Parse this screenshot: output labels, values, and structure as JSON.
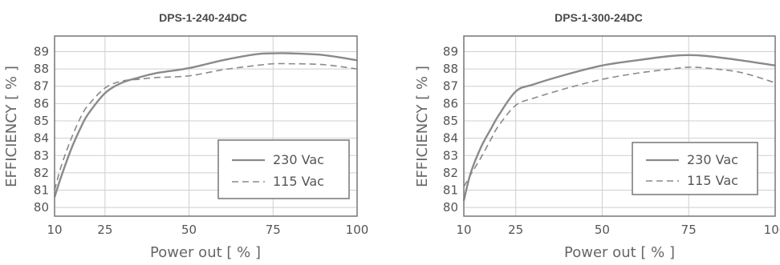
{
  "chart_data": [
    {
      "type": "line",
      "title": "DPS-1-240-24DC",
      "xlabel": "Power out [ % ]",
      "ylabel": "EFFICIENCY [ % ]",
      "xlim": [
        10,
        100
      ],
      "ylim": [
        79.5,
        89.9
      ],
      "xticks": [
        10,
        25,
        50,
        75,
        100
      ],
      "yticks": [
        80,
        81,
        82,
        83,
        84,
        85,
        86,
        87,
        88,
        89
      ],
      "grid": true,
      "legend_position": "bottom-right",
      "series": [
        {
          "name": "230 Vac",
          "style": "solid",
          "x": [
            10,
            12,
            15,
            18,
            20,
            25,
            30,
            35,
            40,
            50,
            60,
            70,
            75,
            80,
            90,
            100
          ],
          "y": [
            80.6,
            81.8,
            83.4,
            84.7,
            85.4,
            86.6,
            87.2,
            87.5,
            87.75,
            88.05,
            88.5,
            88.85,
            88.9,
            88.9,
            88.8,
            88.5
          ]
        },
        {
          "name": "115 Vac",
          "style": "dashed",
          "x": [
            10,
            12,
            15,
            18,
            20,
            25,
            30,
            35,
            40,
            50,
            60,
            70,
            75,
            80,
            90,
            100
          ],
          "y": [
            81.0,
            82.4,
            84.0,
            85.3,
            85.9,
            86.9,
            87.3,
            87.4,
            87.5,
            87.6,
            87.95,
            88.2,
            88.3,
            88.3,
            88.25,
            88.0
          ]
        }
      ]
    },
    {
      "type": "line",
      "title": "DPS-1-300-24DC",
      "xlabel": "Power out [ % ]",
      "ylabel": "EFFICIENCY [ % ]",
      "xlim": [
        10,
        100
      ],
      "ylim": [
        79.5,
        89.9
      ],
      "xticks": [
        10,
        25,
        50,
        75,
        100
      ],
      "yticks": [
        80,
        81,
        82,
        83,
        84,
        85,
        86,
        87,
        88,
        89
      ],
      "grid": true,
      "legend_position": "bottom-right",
      "series": [
        {
          "name": "230 Vac",
          "style": "solid",
          "x": [
            10,
            12,
            15,
            18,
            20,
            25,
            30,
            40,
            50,
            60,
            70,
            75,
            80,
            90,
            100
          ],
          "y": [
            80.4,
            82.0,
            83.5,
            84.6,
            85.3,
            86.7,
            87.1,
            87.7,
            88.2,
            88.5,
            88.75,
            88.8,
            88.75,
            88.5,
            88.2
          ]
        },
        {
          "name": "115 Vac",
          "style": "dashed",
          "x": [
            10,
            12,
            15,
            18,
            20,
            25,
            30,
            40,
            50,
            60,
            70,
            75,
            80,
            90,
            100
          ],
          "y": [
            81.2,
            81.9,
            82.9,
            84.0,
            84.7,
            85.9,
            86.3,
            86.9,
            87.4,
            87.75,
            88.0,
            88.1,
            88.05,
            87.8,
            87.2
          ]
        }
      ]
    }
  ],
  "style": {
    "line_color": "#8a8a8a",
    "grid_color": "#cfcfcf",
    "frame_color": "#777777"
  }
}
